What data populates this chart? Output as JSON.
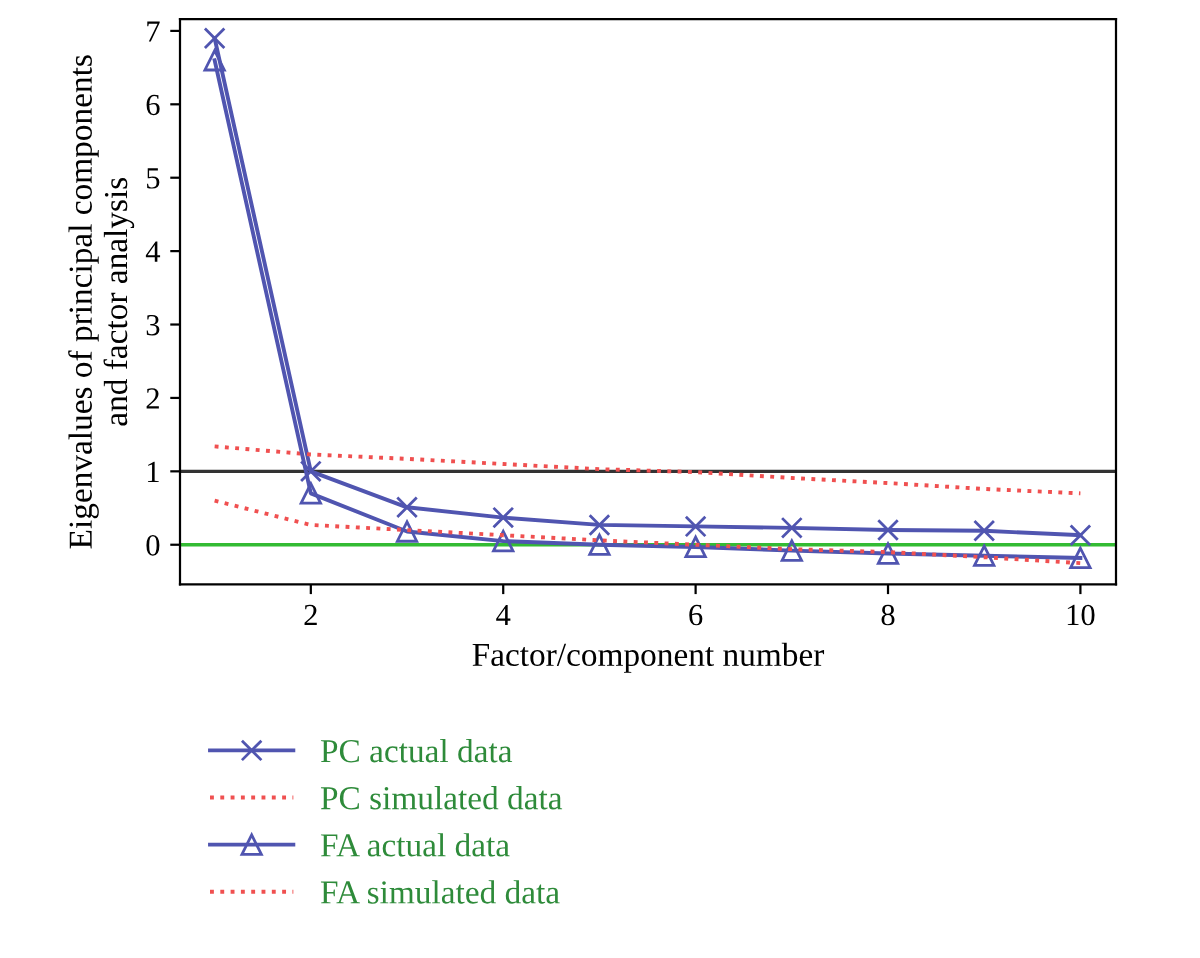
{
  "chart_data": {
    "type": "line",
    "xlabel": "Factor/component number",
    "ylabel": "Eigenvalues of principal components\nand factor analysis",
    "x": [
      1,
      2,
      3,
      4,
      5,
      6,
      7,
      8,
      9,
      10
    ],
    "series": [
      {
        "name": "PC actual data",
        "color": "#5055b0",
        "marker": "cross",
        "line_style": "solid",
        "values": [
          6.9,
          1.0,
          0.51,
          0.37,
          0.27,
          0.25,
          0.23,
          0.2,
          0.19,
          0.13
        ]
      },
      {
        "name": "PC simulated data",
        "color": "#f05050",
        "marker": "none",
        "line_style": "dotted",
        "values": [
          1.34,
          1.23,
          1.17,
          1.1,
          1.03,
          0.99,
          0.91,
          0.84,
          0.76,
          0.7
        ]
      },
      {
        "name": "FA actual data",
        "color": "#5055b0",
        "marker": "triangle",
        "line_style": "solid",
        "values": [
          6.6,
          0.7,
          0.18,
          0.05,
          0.0,
          -0.03,
          -0.08,
          -0.12,
          -0.15,
          -0.18
        ]
      },
      {
        "name": "FA simulated data",
        "color": "#f05050",
        "marker": "none",
        "line_style": "dotted",
        "values": [
          0.6,
          0.27,
          0.2,
          0.13,
          0.06,
          0.0,
          -0.06,
          -0.1,
          -0.17,
          -0.25
        ]
      }
    ],
    "ref_lines": [
      {
        "axis": "y",
        "value": 1,
        "color": "#333333",
        "line_style": "solid"
      },
      {
        "axis": "y",
        "value": 0,
        "color": "#33bb33",
        "line_style": "solid"
      }
    ],
    "xlim": [
      0.64,
      10.37
    ],
    "ylim": [
      -0.54,
      7.16
    ],
    "xticks": [
      2,
      4,
      6,
      8,
      10
    ],
    "yticks": [
      0,
      1,
      2,
      3,
      4,
      5,
      6,
      7
    ],
    "grid": false,
    "legend": "bottom"
  }
}
